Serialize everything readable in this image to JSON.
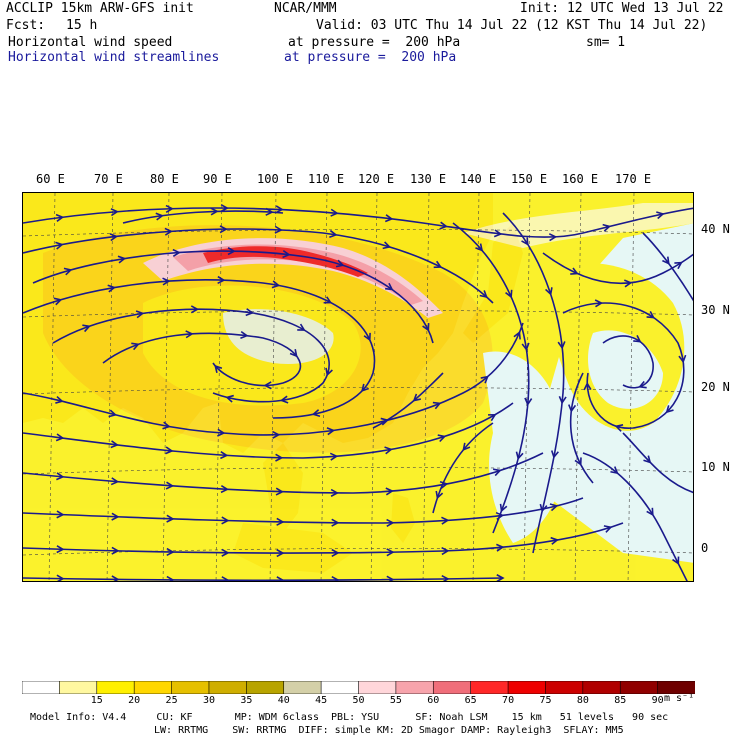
{
  "header": {
    "model": "ACCLIP 15km ARW-GFS init",
    "org": "NCAR/MMM",
    "init": "Init: 12 UTC Wed 13 Jul 22",
    "fcst_label": "Fcst:",
    "fcst_value": "15 h",
    "valid": "Valid: 03 UTC Thu 14 Jul 22 (12 KST Thu 14 Jul 22)",
    "field1": "Horizontal wind speed",
    "field1_level": "at pressure =  200 hPa",
    "smooth": "sm= 1",
    "field2": "Horizontal wind streamlines",
    "field2_level": "at pressure =  200 hPa"
  },
  "map": {
    "lon_labels": [
      "60 E",
      "70 E",
      "80 E",
      "90 E",
      "100 E",
      "110 E",
      "120 E",
      "130 E",
      "140 E",
      "150 E",
      "160 E",
      "170 E"
    ],
    "lat_labels": [
      "40 N",
      "30 N",
      "20 N",
      "10 N",
      "0"
    ],
    "colors": {
      "land": "#e8c89a",
      "ocean": "#e6f7f5",
      "streamline": "#1a1a8c",
      "jet_core": "#ee2a2a",
      "jet_pink": "#f4a0a8",
      "jet_light": "#f8d0d4"
    }
  },
  "colorbar": {
    "values": [
      "15",
      "20",
      "25",
      "30",
      "35",
      "40",
      "45",
      "50",
      "55",
      "60",
      "65",
      "70",
      "75",
      "80",
      "85",
      "90"
    ],
    "unit": "m s⁻¹",
    "colors": [
      "#ffffff",
      "#fff8a0",
      "#fff000",
      "#ffd700",
      "#e6c000",
      "#cfae00",
      "#b8a400",
      "#d4d0a8",
      "#ffffff",
      "#ffd6da",
      "#f7a4ac",
      "#f06e7a",
      "#ff2828",
      "#ee0000",
      "#cc0000",
      "#b00000",
      "#900000",
      "#6e0000"
    ]
  },
  "footer": {
    "line1": "Model Info: V4.4     CU: KF       MP: WDM 6class  PBL: YSU      SF: Noah LSM    15 km   51 levels   90 sec",
    "line2": "LW: RRTMG    SW: RRTMG  DIFF: simple KM: 2D Smagor DAMP: Rayleigh3  SFLAY: MM5"
  }
}
